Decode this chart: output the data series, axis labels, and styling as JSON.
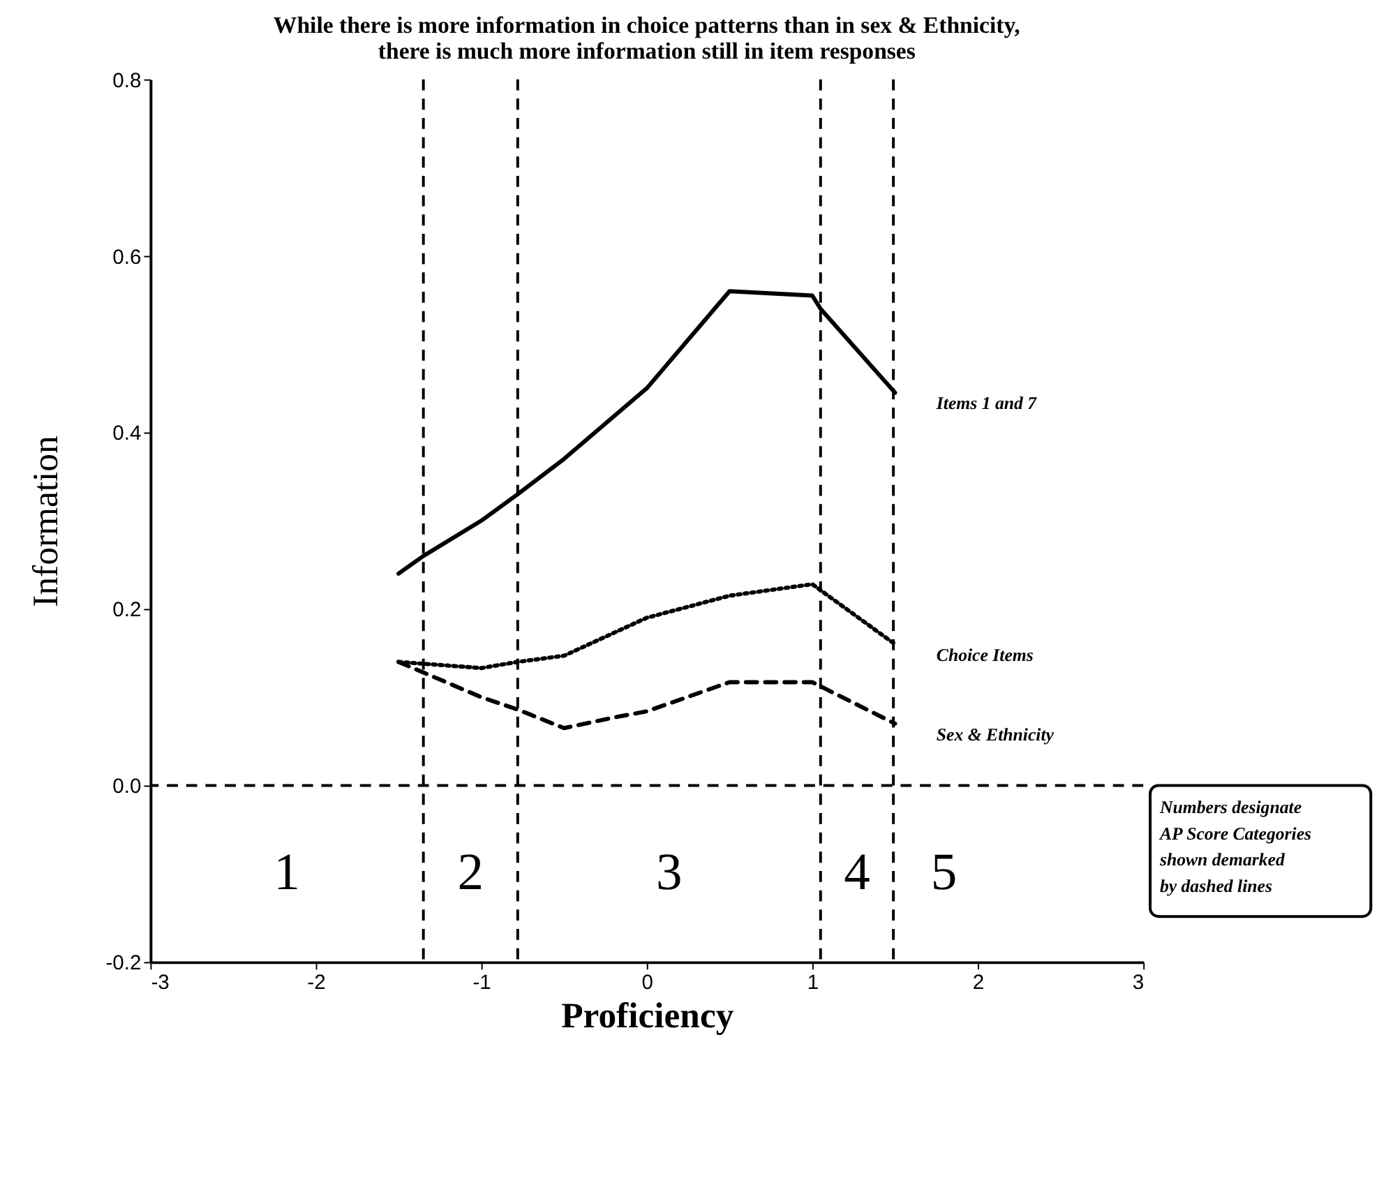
{
  "chart_data": {
    "type": "line",
    "title": [
      "While there is more information in choice patterns than in sex & Ethnicity,",
      "there is much more information still in item responses"
    ],
    "xlabel": "Proficiency",
    "ylabel": "Information",
    "xlim": [
      -3,
      3
    ],
    "xticks": [
      -3,
      -2,
      -1,
      0,
      1,
      2,
      3
    ],
    "ylim": [
      -0.2,
      0.8
    ],
    "yticks": [
      -0.2,
      {
        "value": 0,
        "label": "0.0"
      },
      0.2,
      0.4,
      0.6,
      0.8
    ],
    "series": [
      {
        "name": "Items 1 and 7",
        "color": "#000000",
        "line_style": "solid",
        "x": [
          -1.5,
          -1.35,
          -1.0,
          -0.78,
          -0.5,
          0,
          0.5,
          1.0,
          1.05,
          1.5
        ],
        "values": [
          0.24,
          0.26,
          0.3,
          0.33,
          0.37,
          0.45,
          0.56,
          0.555,
          0.54,
          0.445
        ]
      },
      {
        "name": "Choice Items",
        "color": "#000000",
        "line_style": "dotted",
        "x": [
          -1.5,
          -1.0,
          -0.78,
          -0.5,
          0,
          0.5,
          1.0,
          1.5
        ],
        "values": [
          0.14,
          0.133,
          0.14,
          0.147,
          0.19,
          0.215,
          0.228,
          0.16
        ]
      },
      {
        "name": "Sex & Ethnicity",
        "color": "#000000",
        "line_style": "dashed",
        "x": [
          -1.5,
          -1.0,
          -0.78,
          -0.5,
          -0.2,
          0,
          0.5,
          1.0,
          1.5
        ],
        "values": [
          0.14,
          0.1,
          0.086,
          0.065,
          0.077,
          0.084,
          0.117,
          0.117,
          0.07
        ]
      }
    ],
    "ref_lines": [
      {
        "axis": "y",
        "value": 0,
        "line_style": "dashed",
        "color": "#000000"
      },
      {
        "axis": "x",
        "value": -1.35,
        "line_style": "dashed",
        "color": "#000000"
      },
      {
        "axis": "x",
        "value": -0.78,
        "line_style": "dashed",
        "color": "#000000"
      },
      {
        "axis": "x",
        "value": 1.05,
        "line_style": "dashed",
        "color": "#000000"
      },
      {
        "axis": "x",
        "value": 1.49,
        "line_style": "dashed",
        "color": "#000000"
      }
    ],
    "annotations": [
      "1",
      "2",
      "3",
      "4",
      "5",
      "Numbers designate\nAP Score Categories\n shown demarked\n  by dashed lines"
    ]
  }
}
